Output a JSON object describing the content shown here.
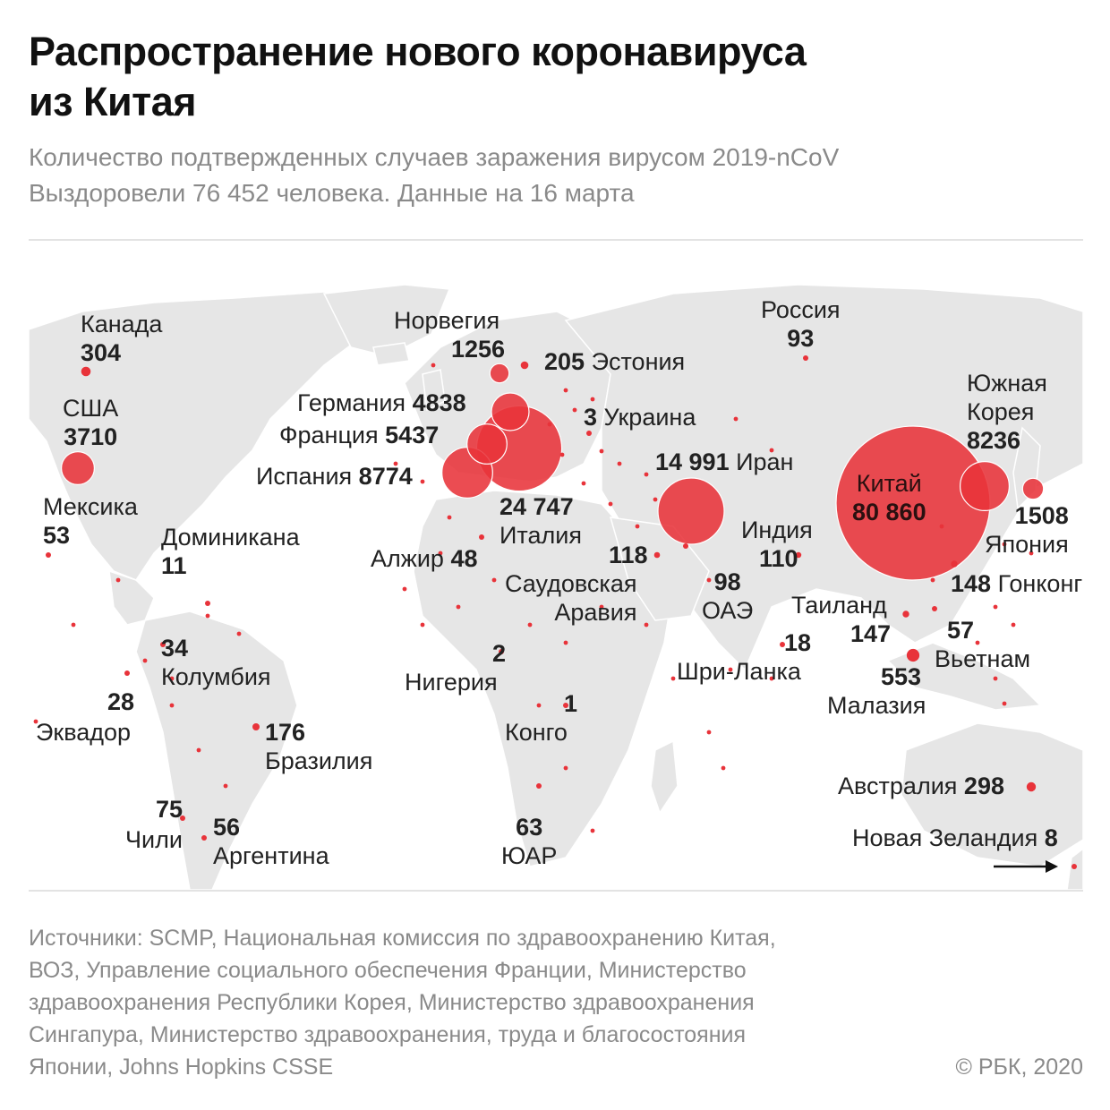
{
  "title": {
    "line1": "Распространение нового коронавируса",
    "line2": "из Китая"
  },
  "subtitle": {
    "line1": "Количество подтвержденных случаев заражения вирусом 2019-nCoV",
    "line2": "Выздоровели 76 452 человека. Данные на 16 марта"
  },
  "colors": {
    "circle_fill": "#e8333a",
    "land": "#e6e6e6",
    "text": "#1a1a1a",
    "muted": "#8a8a8a"
  },
  "countries": {
    "canada": {
      "name": "Канада",
      "cases": "304"
    },
    "usa": {
      "name": "США",
      "cases": "3710"
    },
    "mexico": {
      "name": "Мексика",
      "cases": "53"
    },
    "dominicana": {
      "name": "Доминикана",
      "cases": "11"
    },
    "colombia": {
      "name": "Колумбия",
      "cases": "34"
    },
    "ecuador": {
      "name": "Эквадор",
      "cases": "28"
    },
    "brazil": {
      "name": "Бразилия",
      "cases": "176"
    },
    "chile": {
      "name": "Чили",
      "cases": "75"
    },
    "argentina": {
      "name": "Аргентина",
      "cases": "56"
    },
    "norway": {
      "name": "Норвегия",
      "cases": "1256"
    },
    "estonia": {
      "name": "Эстония",
      "cases": "205"
    },
    "germany": {
      "name": "Германия",
      "cases": "4838"
    },
    "ukraine": {
      "name": "Украина",
      "cases": "3"
    },
    "france": {
      "name": "Франция",
      "cases": "5437"
    },
    "spain": {
      "name": "Испания",
      "cases": "8774"
    },
    "italy": {
      "name": "Италия",
      "cases": "24 747"
    },
    "algeria": {
      "name": "Алжир",
      "cases": "48"
    },
    "iran": {
      "name": "Иран",
      "cases": "14 991"
    },
    "saudi": {
      "name_line1": "Саудовская",
      "name_line2": "Аравия",
      "cases": "118"
    },
    "uae": {
      "name": "ОАЭ",
      "cases": "98"
    },
    "nigeria": {
      "name": "Нигерия",
      "cases": "2"
    },
    "congo": {
      "name": "Конго",
      "cases": "1"
    },
    "south_africa": {
      "name": "ЮАР",
      "cases": "63"
    },
    "russia": {
      "name": "Россия",
      "cases": "93"
    },
    "china": {
      "name": "Китай",
      "cases": "80 860"
    },
    "south_korea": {
      "name_line1": "Южная",
      "name_line2": "Корея",
      "cases": "8236"
    },
    "japan": {
      "name": "Япония",
      "cases": "1508"
    },
    "india": {
      "name": "Индия",
      "cases": "110"
    },
    "hong_kong": {
      "name": "Гонконг",
      "cases": "148"
    },
    "thailand": {
      "name": "Таиланд",
      "cases": "147"
    },
    "vietnam": {
      "name": "Вьетнам",
      "cases": "57"
    },
    "sri_lanka": {
      "name": "Шри-Ланка",
      "cases": "18"
    },
    "malaysia": {
      "name": "Малазия",
      "cases": "553"
    },
    "australia": {
      "name": "Австралия",
      "cases": "298"
    },
    "new_zealand": {
      "name": "Новая Зеландия",
      "cases": "8"
    }
  },
  "footer": {
    "sources": [
      "Источники: SCMP, Национальная комиссия по здравоохранению Китая,",
      "ВОЗ, Управление социального обеспечения Франции, Министерство",
      "здравоохранения Республики Корея, Министерство здравоохранения",
      "Сингапура, Министерство здравоохранения, труда и благосостояния",
      "Японии, Johns Hopkins CSSE"
    ],
    "copyright": "© РБК, 2020"
  }
}
